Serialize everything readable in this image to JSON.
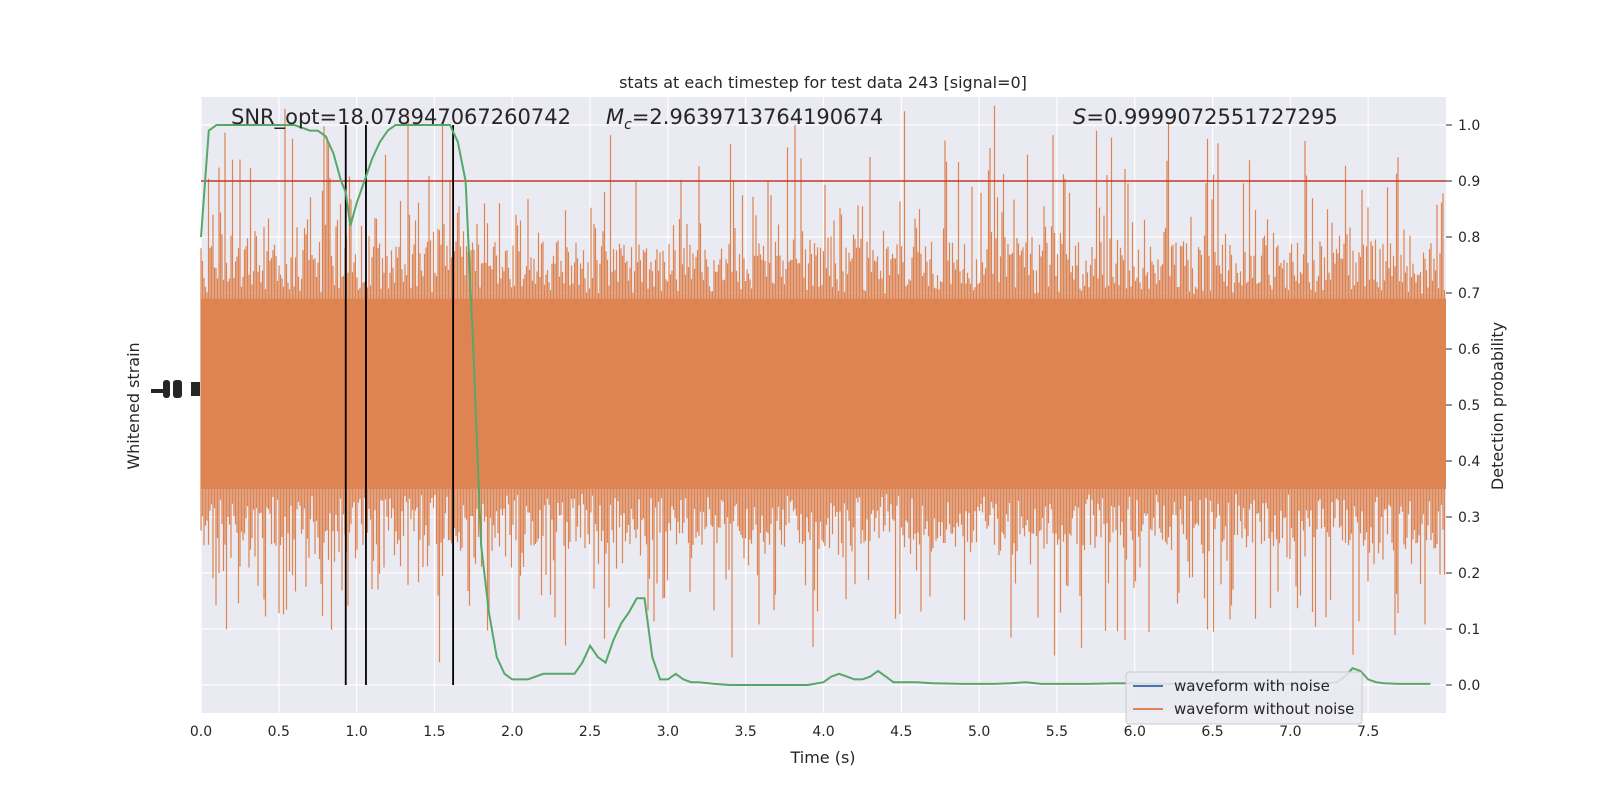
{
  "chart_data": {
    "type": "line",
    "title": "stats at each timestep for test data 243 [signal=0]",
    "xlabel": "Time (s)",
    "ylabel_left": "Whitened strain",
    "ylabel_right": "Detection probability",
    "xlim": [
      0.0,
      8.0
    ],
    "ylim_right": [
      -0.05,
      1.05
    ],
    "grid": true,
    "x_ticks": [
      "0.0",
      "0.5",
      "1.0",
      "1.5",
      "2.0",
      "2.5",
      "3.0",
      "3.5",
      "4.0",
      "4.5",
      "5.0",
      "5.5",
      "6.0",
      "6.5",
      "7.0",
      "7.5"
    ],
    "y_right_ticks": [
      "0.0",
      "0.1",
      "0.2",
      "0.3",
      "0.4",
      "0.5",
      "0.6",
      "0.7",
      "0.8",
      "0.9",
      "1.0"
    ],
    "annotations": {
      "snr": "SNR_opt=18.078947067260742",
      "mc_symbol": "M",
      "mc_subscript": "c",
      "mc_value": "=2.9639713764190674",
      "s_symbol": "S",
      "s_value": "=0.9999072551727295"
    },
    "threshold": {
      "value": 0.9,
      "color": "#c0392b"
    },
    "vertical_lines_x": [
      0.93,
      1.06,
      1.62
    ],
    "legend": {
      "placement": "lower-right",
      "entries": [
        {
          "label": "waveform with noise",
          "color": "#4c72b0"
        },
        {
          "label": "waveform without noise",
          "color": "#dd8452"
        }
      ]
    },
    "noise_series": {
      "color": "#dd8452",
      "center": 0.52,
      "core_halfwidth": 0.17
    },
    "series": [
      {
        "color": "#55a868",
        "x": [
          0.0,
          0.05,
          0.1,
          0.2,
          0.3,
          0.4,
          0.5,
          0.6,
          0.7,
          0.75,
          0.8,
          0.85,
          0.9,
          0.93,
          0.96,
          1.0,
          1.05,
          1.1,
          1.15,
          1.2,
          1.25,
          1.3,
          1.35,
          1.4,
          1.5,
          1.6,
          1.65,
          1.7,
          1.75,
          1.8,
          1.85,
          1.9,
          1.95,
          2.0,
          2.05,
          2.1,
          2.2,
          2.3,
          2.4,
          2.45,
          2.5,
          2.55,
          2.6,
          2.65,
          2.7,
          2.75,
          2.8,
          2.85,
          2.9,
          2.95,
          3.0,
          3.05,
          3.1,
          3.15,
          3.2,
          3.3,
          3.4,
          3.5,
          3.7,
          3.9,
          4.0,
          4.05,
          4.1,
          4.15,
          4.2,
          4.25,
          4.3,
          4.35,
          4.4,
          4.45,
          4.5,
          4.6,
          4.7,
          4.9,
          5.0,
          5.1,
          5.2,
          5.3,
          5.4,
          5.5,
          5.7,
          5.9,
          6.1,
          6.3,
          6.5,
          6.7,
          6.9,
          7.0,
          7.1,
          7.2,
          7.3,
          7.35,
          7.4,
          7.45,
          7.5,
          7.55,
          7.6,
          7.7,
          7.8,
          7.9
        ],
        "y": [
          0.8,
          0.99,
          1.0,
          1.0,
          1.0,
          1.0,
          1.0,
          1.0,
          0.99,
          0.99,
          0.98,
          0.95,
          0.9,
          0.88,
          0.82,
          0.86,
          0.9,
          0.94,
          0.97,
          0.99,
          1.0,
          1.0,
          1.0,
          1.0,
          1.0,
          1.0,
          0.97,
          0.9,
          0.6,
          0.25,
          0.13,
          0.05,
          0.02,
          0.01,
          0.01,
          0.01,
          0.02,
          0.02,
          0.02,
          0.04,
          0.07,
          0.05,
          0.04,
          0.08,
          0.11,
          0.13,
          0.155,
          0.155,
          0.05,
          0.01,
          0.01,
          0.02,
          0.01,
          0.005,
          0.005,
          0.002,
          0.0,
          0.0,
          0.0,
          0.0,
          0.005,
          0.015,
          0.02,
          0.015,
          0.01,
          0.01,
          0.015,
          0.025,
          0.015,
          0.005,
          0.005,
          0.005,
          0.003,
          0.002,
          0.002,
          0.002,
          0.003,
          0.005,
          0.002,
          0.002,
          0.002,
          0.003,
          0.002,
          0.002,
          0.002,
          0.002,
          0.002,
          0.002,
          0.002,
          0.002,
          0.005,
          0.015,
          0.03,
          0.025,
          0.01,
          0.005,
          0.003,
          0.002,
          0.002,
          0.002
        ]
      }
    ]
  }
}
